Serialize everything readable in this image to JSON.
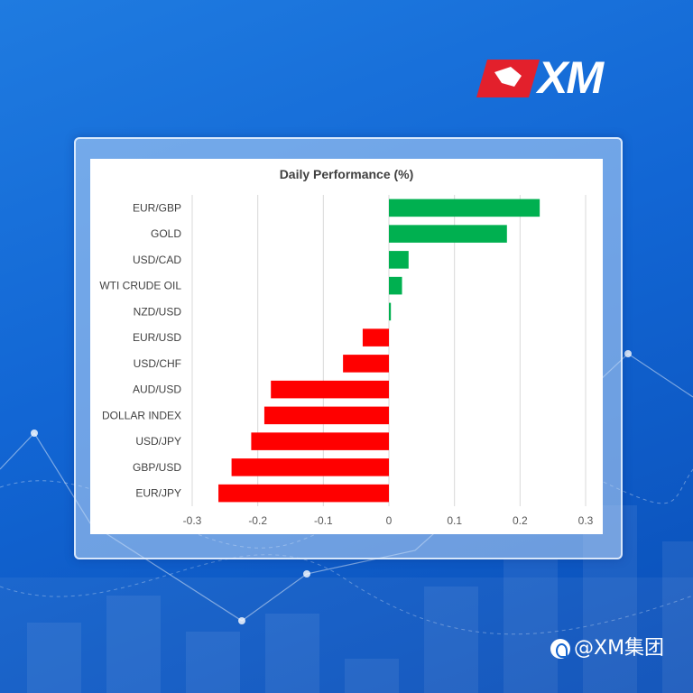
{
  "brand": {
    "logo_text": "XM",
    "watermark_text": "@XM集团"
  },
  "colors": {
    "positive": "#00b050",
    "negative": "#ff0000",
    "gridline": "#d9d9d9",
    "background": "#1266d4"
  },
  "chart_data": {
    "type": "bar",
    "orientation": "horizontal",
    "title": "Daily Performance (%)",
    "categories": [
      "EUR/GBP",
      "GOLD",
      "USD/CAD",
      "WTI CRUDE OIL",
      "NZD/USD",
      "EUR/USD",
      "USD/CHF",
      "AUD/USD",
      "DOLLAR INDEX",
      "USD/JPY",
      "GBP/USD",
      "EUR/JPY"
    ],
    "values": [
      0.23,
      0.18,
      0.03,
      0.02,
      0.003,
      -0.04,
      -0.07,
      -0.18,
      -0.19,
      -0.21,
      -0.24,
      -0.26
    ],
    "xlim": [
      -0.3,
      0.3
    ],
    "xticks": [
      "-0.3",
      "-0.2",
      "-0.1",
      "0",
      "0.1",
      "0.2",
      "0.3"
    ],
    "grid": true,
    "legend": "none"
  }
}
